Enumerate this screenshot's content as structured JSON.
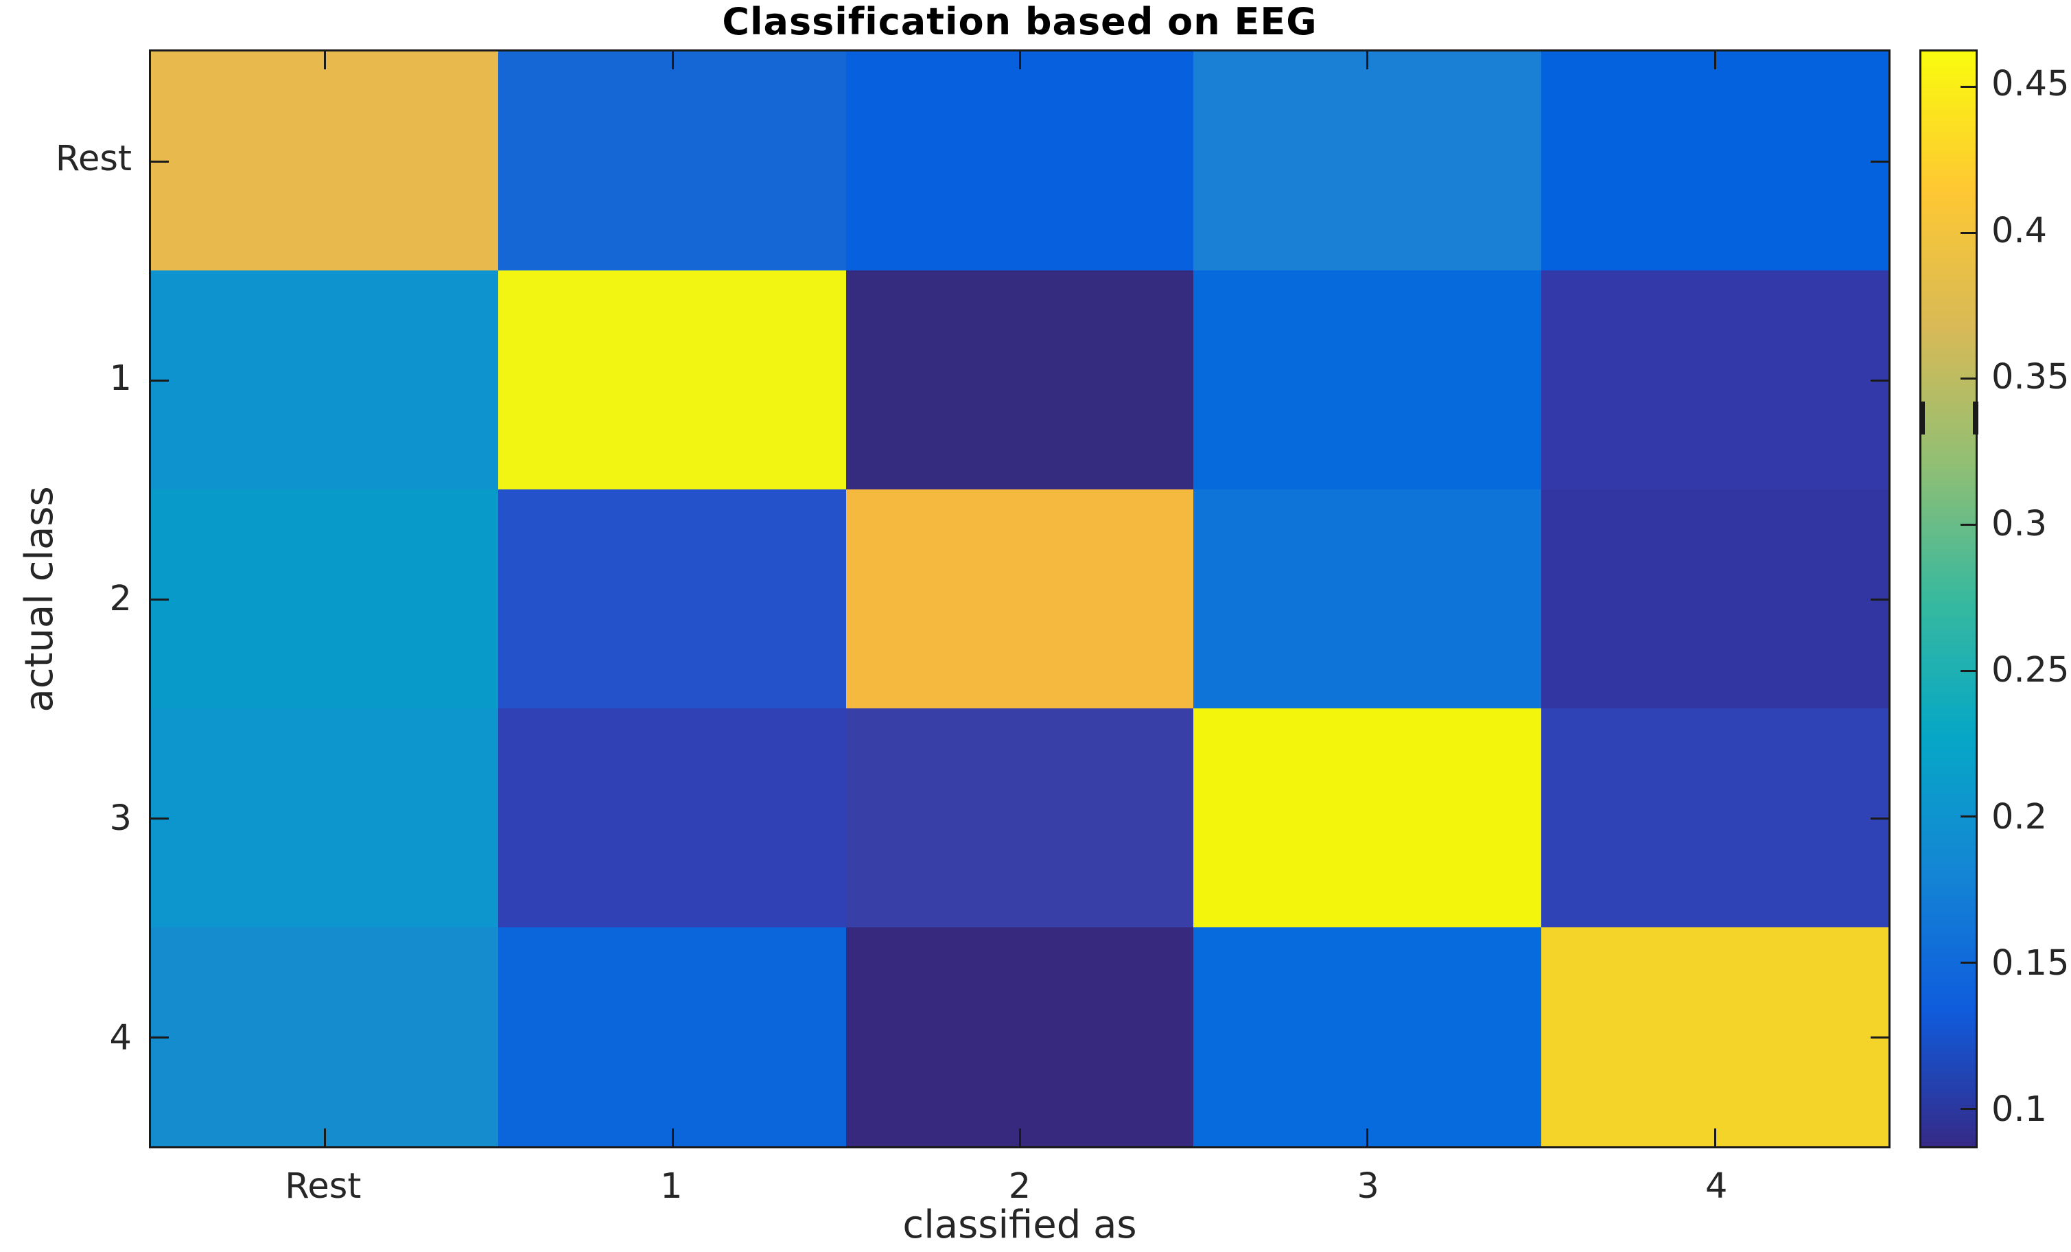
{
  "figure": {
    "title": "Classification based on EEG",
    "xlabel": "classified as",
    "ylabel": "actual class"
  },
  "chart_data": {
    "type": "heatmap",
    "title": "Classification based on EEG",
    "xlabel": "classified as",
    "ylabel": "actual class",
    "x_categories": [
      "Rest",
      "1",
      "2",
      "3",
      "4"
    ],
    "y_categories": [
      "Rest",
      "1",
      "2",
      "3",
      "4"
    ],
    "values": [
      [
        0.39,
        0.145,
        0.135,
        0.175,
        0.14
      ],
      [
        0.2,
        0.455,
        0.09,
        0.145,
        0.105
      ],
      [
        0.21,
        0.12,
        0.4,
        0.16,
        0.105
      ],
      [
        0.205,
        0.11,
        0.105,
        0.455,
        0.115
      ],
      [
        0.19,
        0.145,
        0.09,
        0.15,
        0.425
      ]
    ],
    "cell_colors": [
      [
        "#E8B94C",
        "#1567D5",
        "#0761DF",
        "#1A80D5",
        "#0562DE"
      ],
      [
        "#0E93CE",
        "#F2F411",
        "#352B7F",
        "#0669DC",
        "#3339A8"
      ],
      [
        "#089BC9",
        "#2352CB",
        "#F5B93F",
        "#0F74D8",
        "#3236A3"
      ],
      [
        "#0C96CD",
        "#2F41B4",
        "#3840A8",
        "#F4F50C",
        "#2F43B7"
      ],
      [
        "#148CCE",
        "#0C66DB",
        "#36297E",
        "#076BDE",
        "#F4D429"
      ]
    ],
    "colormap": "parula",
    "grid": false,
    "legend": null,
    "axis_text_color": "#262626",
    "axis_line_color": "#1a1a1a",
    "colorbar": {
      "position": "right",
      "vmin": 0.087,
      "vmax": 0.462,
      "ticks": [
        0.45,
        0.4,
        0.35,
        0.3,
        0.25,
        0.2,
        0.15,
        0.1
      ],
      "tick_labels": [
        "0.45",
        "0.4",
        "0.35",
        "0.3",
        "0.25",
        "0.2",
        "0.15",
        "0.1"
      ],
      "gradient_bottom_to_top": [
        "#352A87",
        "#0F5CDD",
        "#1485D4",
        "#06A7C6",
        "#38B99E",
        "#92BF73",
        "#D9BA56",
        "#FEC832",
        "#F9FB0E"
      ]
    }
  }
}
